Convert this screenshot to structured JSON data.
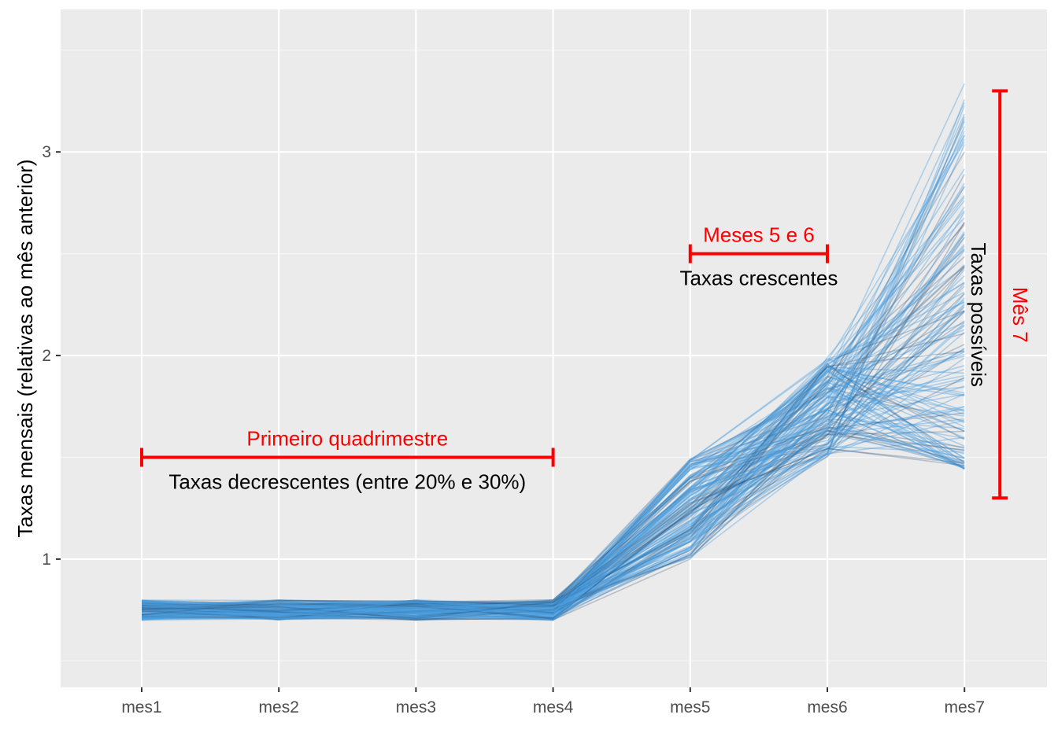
{
  "chart_data": {
    "type": "line",
    "title": "",
    "xlabel": "",
    "ylabel": "Taxas mensais (relativas ao mês anterior)",
    "categories": [
      "mes1",
      "mes2",
      "mes3",
      "mes4",
      "mes5",
      "mes6",
      "mes7"
    ],
    "ylim": [
      0.37,
      3.7
    ],
    "y_ticks": [
      1,
      2,
      3
    ],
    "y_tick_labels": [
      "1",
      "2",
      "3"
    ],
    "grid": true,
    "legend": "none",
    "n_series": 150,
    "line_color": "#4a9fe0",
    "series_ranges": {
      "mes1": [
        0.7,
        0.8
      ],
      "mes2": [
        0.7,
        0.8
      ],
      "mes3": [
        0.7,
        0.8
      ],
      "mes4": [
        0.7,
        0.8
      ],
      "mes5": [
        1.0,
        1.5
      ],
      "mes6": [
        1.5,
        2.0
      ],
      "mes7": [
        1.44,
        3.35
      ]
    },
    "annotations": [
      {
        "id": "primeiro",
        "label_top": "Primeiro quadrimestre",
        "label_bottom": "Taxas decrescentes (entre 20% e 30%)",
        "from": "mes1",
        "to": "mes4",
        "y": 1.5,
        "color": "#ff0000"
      },
      {
        "id": "meses56",
        "label_top": "Meses 5 e 6",
        "label_bottom": "Taxas crescentes",
        "from": "mes5",
        "to": "mes6",
        "y": 2.5,
        "color": "#ff0000"
      },
      {
        "id": "mes7",
        "label_red": "Mês 7",
        "label_black": "Taxas possíveis",
        "at": "mes7",
        "from_y": 1.3,
        "to_y": 3.3,
        "color": "#ff0000"
      }
    ]
  },
  "colors": {
    "panel": "#ebebeb",
    "grid_major": "#ffffff",
    "grid_minor": "#f5f5f5",
    "annotation": "#ff0000"
  }
}
